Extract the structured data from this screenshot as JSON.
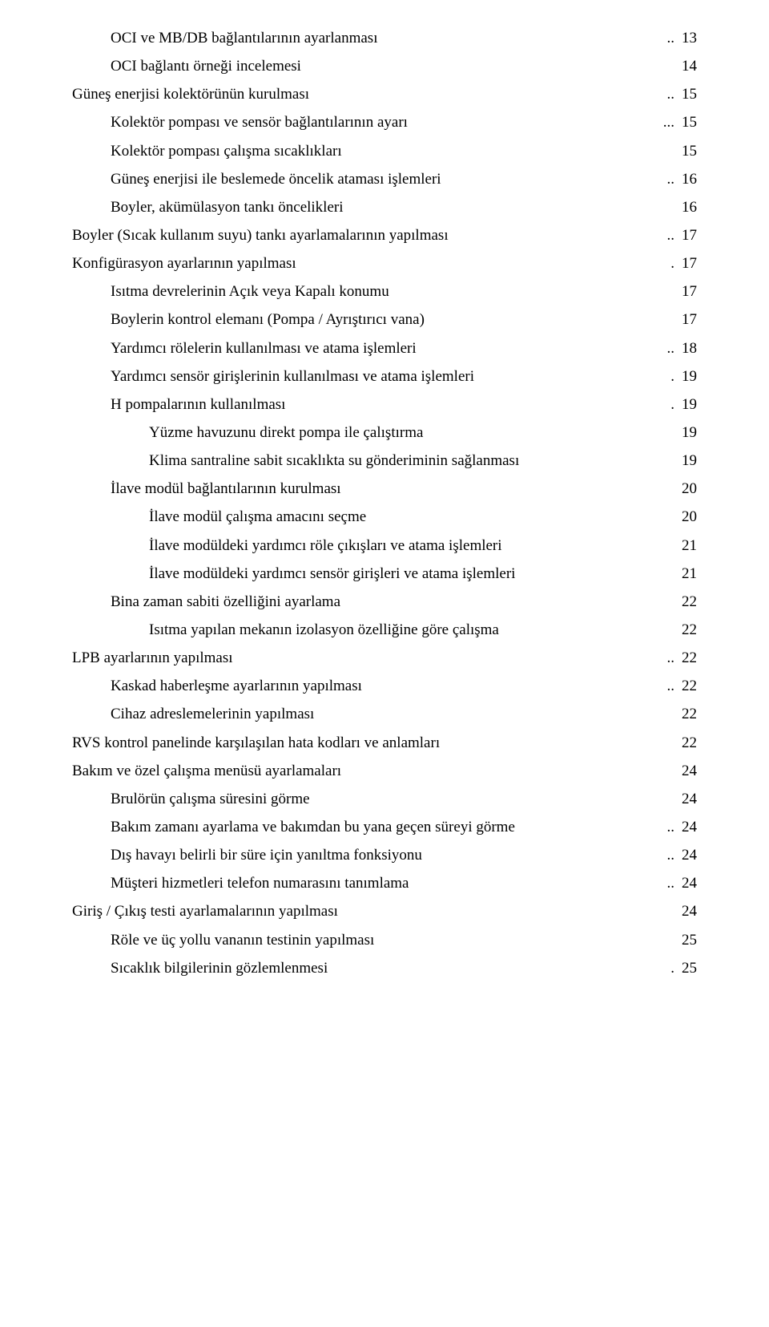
{
  "toc": [
    {
      "indent": 1,
      "label": "OCI ve MB/DB bağlantılarının ayarlanması",
      "suffix": "..",
      "page": "13"
    },
    {
      "indent": 1,
      "label": "OCI bağlantı örneği incelemesi",
      "suffix": "",
      "page": "14"
    },
    {
      "indent": 0,
      "label": "Güneş enerjisi kolektörünün kurulması",
      "suffix": "..",
      "page": "15"
    },
    {
      "indent": 1,
      "label": "Kolektör pompası ve sensör bağlantılarının ayarı",
      "suffix": "...",
      "page": "15"
    },
    {
      "indent": 1,
      "label": "Kolektör pompası çalışma sıcaklıkları",
      "suffix": "",
      "page": "15"
    },
    {
      "indent": 1,
      "label": "Güneş enerjisi ile beslemede öncelik ataması işlemleri",
      "suffix": "..",
      "page": "16"
    },
    {
      "indent": 1,
      "label": "Boyler, akümülasyon tankı öncelikleri",
      "suffix": "",
      "page": "16"
    },
    {
      "indent": 0,
      "label": "Boyler (Sıcak kullanım suyu) tankı ayarlamalarının yapılması",
      "suffix": "..",
      "page": "17"
    },
    {
      "indent": 0,
      "label": "Konfigürasyon ayarlarının yapılması",
      "suffix": ".",
      "page": "17"
    },
    {
      "indent": 1,
      "label": "Isıtma devrelerinin Açık veya Kapalı konumu",
      "suffix": "",
      "page": "17"
    },
    {
      "indent": 1,
      "label": "Boylerin kontrol elemanı (Pompa / Ayrıştırıcı vana)",
      "suffix": "",
      "page": "17"
    },
    {
      "indent": 1,
      "label": "Yardımcı rölelerin kullanılması ve atama işlemleri",
      "suffix": "..",
      "page": "18"
    },
    {
      "indent": 1,
      "label": "Yardımcı sensör girişlerinin kullanılması ve atama işlemleri",
      "suffix": ".",
      "page": "19"
    },
    {
      "indent": 1,
      "label": "H pompalarının kullanılması",
      "suffix": ".",
      "page": "19"
    },
    {
      "indent": 2,
      "label": "Yüzme havuzunu direkt pompa ile çalıştırma",
      "suffix": "",
      "page": "19"
    },
    {
      "indent": 2,
      "label": "Klima santraline sabit sıcaklıkta su gönderiminin sağlanması",
      "suffix": "",
      "page": "19"
    },
    {
      "indent": 1,
      "label": "İlave modül bağlantılarının kurulması",
      "suffix": "",
      "page": "20"
    },
    {
      "indent": 2,
      "label": "İlave modül çalışma amacını seçme",
      "suffix": "",
      "page": "20"
    },
    {
      "indent": 2,
      "label": "İlave modüldeki yardımcı röle çıkışları ve atama işlemleri",
      "suffix": "",
      "page": "21"
    },
    {
      "indent": 2,
      "label": "İlave modüldeki yardımcı sensör girişleri ve atama işlemleri",
      "suffix": "",
      "page": "21"
    },
    {
      "indent": 1,
      "label": "Bina zaman sabiti özelliğini ayarlama",
      "suffix": "",
      "page": "22"
    },
    {
      "indent": 2,
      "label": "Isıtma yapılan mekanın izolasyon özelliğine göre çalışma",
      "suffix": "",
      "page": "22"
    },
    {
      "indent": 0,
      "label": "LPB ayarlarının yapılması",
      "suffix": "..",
      "page": "22"
    },
    {
      "indent": 1,
      "label": "Kaskad haberleşme ayarlarının yapılması",
      "suffix": "..",
      "page": "22"
    },
    {
      "indent": 1,
      "label": "Cihaz adreslemelerinin yapılması",
      "suffix": "",
      "page": "22"
    },
    {
      "indent": 0,
      "label": "RVS kontrol panelinde karşılaşılan hata kodları ve anlamları",
      "suffix": "",
      "page": "22"
    },
    {
      "indent": 0,
      "label": "Bakım ve özel çalışma menüsü ayarlamaları",
      "suffix": "",
      "page": "24"
    },
    {
      "indent": 1,
      "label": "Brulörün çalışma süresini görme",
      "suffix": "",
      "page": "24"
    },
    {
      "indent": 1,
      "label": "Bakım zamanı ayarlama ve bakımdan bu yana geçen süreyi görme",
      "suffix": "..",
      "page": "24"
    },
    {
      "indent": 1,
      "label": "Dış havayı belirli bir süre için yanıltma fonksiyonu",
      "suffix": "..",
      "page": "24"
    },
    {
      "indent": 1,
      "label": "Müşteri hizmetleri telefon numarasını tanımlama",
      "suffix": "..",
      "page": "24"
    },
    {
      "indent": 0,
      "label": "Giriş / Çıkış testi ayarlamalarının yapılması",
      "suffix": "",
      "page": "24"
    },
    {
      "indent": 1,
      "label": "Röle ve üç yollu vananın testinin yapılması",
      "suffix": "",
      "page": "25"
    },
    {
      "indent": 1,
      "label": "Sıcaklık bilgilerinin gözlemlenmesi",
      "suffix": ".",
      "page": "25"
    }
  ]
}
